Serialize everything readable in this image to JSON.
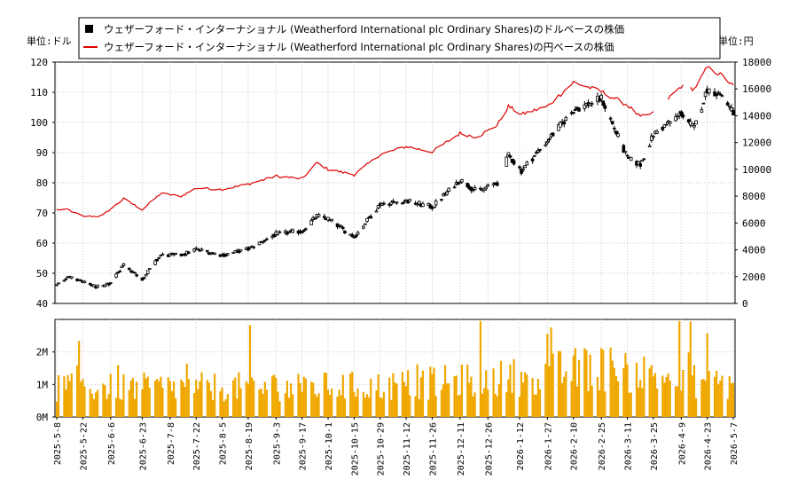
{
  "chart_data": [
    {
      "type": "candlestick+line",
      "left_unit": "単位:ドル",
      "right_unit": "単位:円",
      "left_ylim": [
        40,
        120
      ],
      "left_ticks": [
        40,
        50,
        60,
        70,
        80,
        90,
        100,
        110,
        120
      ],
      "right_ylim": [
        0,
        18000
      ],
      "right_ticks": [
        0,
        2000,
        4000,
        6000,
        8000,
        10000,
        12000,
        14000,
        16000,
        18000
      ],
      "legend_position": "top-center",
      "grid": true,
      "legend": [
        {
          "label": "ウェザーフォード・インターナショナル (Weatherford International plc Ordinary Shares)のドルベースの株価",
          "color": "#000000",
          "marker": "square"
        },
        {
          "label": "ウェザーフォード・インターナショナル (Weatherford International plc Ordinary Shares)の円ベースの株価",
          "color": "#dd0000",
          "marker": "line"
        }
      ],
      "usd_anchors": [
        [
          "2025-05-08",
          46
        ],
        [
          "2025-05-14",
          49
        ],
        [
          "2025-05-22",
          47
        ],
        [
          "2025-06-01",
          45
        ],
        [
          "2025-06-06",
          47
        ],
        [
          "2025-06-13",
          53
        ],
        [
          "2025-06-23",
          48
        ],
        [
          "2025-07-03",
          56
        ],
        [
          "2025-07-14",
          56
        ],
        [
          "2025-07-22",
          58
        ],
        [
          "2025-08-05",
          56
        ],
        [
          "2025-08-19",
          58
        ],
        [
          "2025-09-03",
          63
        ],
        [
          "2025-09-17",
          64
        ],
        [
          "2025-09-25",
          69
        ],
        [
          "2025-10-01",
          68
        ],
        [
          "2025-10-15",
          62
        ],
        [
          "2025-10-29",
          73
        ],
        [
          "2025-11-12",
          74
        ],
        [
          "2025-11-26",
          72
        ],
        [
          "2025-12-11",
          81
        ],
        [
          "2025-12-20",
          77
        ],
        [
          "2025-12-31",
          80
        ],
        [
          "2026-01-06",
          89
        ],
        [
          "2026-01-13",
          84
        ],
        [
          "2026-01-27",
          94
        ],
        [
          "2026-02-10",
          104
        ],
        [
          "2026-02-25",
          108
        ],
        [
          "2026-03-11",
          88
        ],
        [
          "2026-03-18",
          86
        ],
        [
          "2026-03-25",
          96
        ],
        [
          "2026-04-09",
          103
        ],
        [
          "2026-04-16",
          98
        ],
        [
          "2026-04-23",
          111
        ],
        [
          "2026-05-01",
          109
        ],
        [
          "2026-05-07",
          103
        ]
      ],
      "usd_gap": [
        "2026-01-01",
        "2026-01-04"
      ],
      "jpy_anchors": [
        [
          "2025-05-08",
          7000
        ],
        [
          "2025-05-14",
          7000
        ],
        [
          "2025-05-22",
          6500
        ],
        [
          "2025-06-01",
          6500
        ],
        [
          "2025-06-13",
          7800
        ],
        [
          "2025-06-23",
          7000
        ],
        [
          "2025-07-03",
          8200
        ],
        [
          "2025-07-14",
          8000
        ],
        [
          "2025-07-22",
          8600
        ],
        [
          "2025-08-05",
          8500
        ],
        [
          "2025-08-19",
          8900
        ],
        [
          "2025-09-03",
          9500
        ],
        [
          "2025-09-17",
          9300
        ],
        [
          "2025-09-25",
          10500
        ],
        [
          "2025-10-01",
          10000
        ],
        [
          "2025-10-15",
          9600
        ],
        [
          "2025-10-29",
          11100
        ],
        [
          "2025-11-12",
          11700
        ],
        [
          "2025-11-26",
          11300
        ],
        [
          "2025-12-11",
          12700
        ],
        [
          "2025-12-20",
          12400
        ],
        [
          "2025-12-31",
          13300
        ],
        [
          "2026-01-06",
          14700
        ],
        [
          "2026-01-13",
          14100
        ],
        [
          "2026-01-27",
          14700
        ],
        [
          "2026-02-10",
          16500
        ],
        [
          "2026-02-25",
          15800
        ],
        [
          "2026-03-11",
          14800
        ],
        [
          "2026-03-18",
          13900
        ],
        [
          "2026-03-25",
          14200
        ],
        [
          "2026-04-09",
          16200
        ],
        [
          "2026-04-16",
          16000
        ],
        [
          "2026-04-23",
          17600
        ],
        [
          "2026-05-01",
          17000
        ],
        [
          "2026-05-07",
          16200
        ]
      ],
      "jpy_gaps": [
        [
          "2026-03-26",
          "2026-04-01"
        ],
        [
          "2026-04-12",
          "2026-04-13"
        ]
      ]
    },
    {
      "type": "bar",
      "series_color": "#f0a800",
      "ylim": [
        0,
        3000000
      ],
      "y_ticks": [
        {
          "value": 0,
          "label": "0M"
        },
        {
          "value": 1000000,
          "label": "1M"
        },
        {
          "value": 2000000,
          "label": "2M"
        }
      ],
      "volume_level_by_period": [
        [
          "2025-05-08",
          1000000
        ],
        [
          "2025-10-29",
          1050000
        ],
        [
          "2026-01-01",
          1300000
        ],
        [
          "2026-02-25",
          1700000
        ],
        [
          "2026-04-09",
          1300000
        ],
        [
          "2026-05-07",
          1100000
        ]
      ],
      "x_ticks": [
        "2025-5-8",
        "2025-5-22",
        "2025-6-6",
        "2025-6-23",
        "2025-7-8",
        "2025-7-22",
        "2025-8-5",
        "2025-8-19",
        "2025-9-3",
        "2025-9-17",
        "2025-10-1",
        "2025-10-15",
        "2025-10-29",
        "2025-11-12",
        "2025-11-26",
        "2025-12-11",
        "2025-12-26",
        "2026-1-12",
        "2026-1-27",
        "2026-2-10",
        "2026-2-25",
        "2026-3-11",
        "2026-3-25",
        "2026-4-9",
        "2026-4-23",
        "2026-5-7"
      ],
      "start_date": "2025-05-08",
      "end_date": "2026-05-07"
    }
  ]
}
